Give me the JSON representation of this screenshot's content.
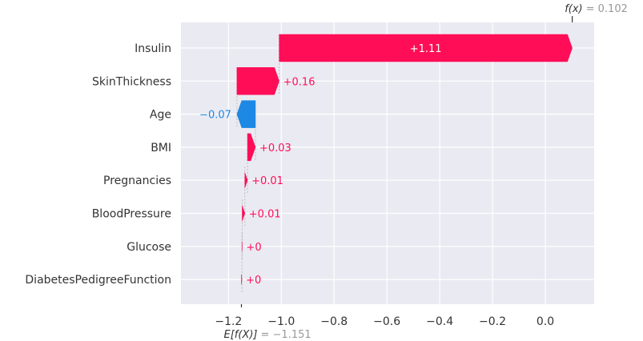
{
  "chart_data": {
    "type": "waterfall",
    "base_value_label": "E[f(X)]",
    "base_value_text": "= −1.151",
    "base_value": -1.151,
    "output_label": "f(x)",
    "output_value_text": "= 0.102",
    "output_value": 0.102,
    "xlim": [
      -1.38,
      0.185
    ],
    "xticks": [
      -1.2,
      -1.0,
      -0.8,
      -0.6,
      -0.4,
      -0.2,
      0.0
    ],
    "xtick_labels": [
      "−1.2",
      "−1.0",
      "−0.8",
      "−0.6",
      "−0.4",
      "−0.2",
      "0.0"
    ],
    "features": [
      {
        "name": "Insulin",
        "start": -1.008,
        "end": 0.102,
        "value": 1.11,
        "label": "+1.11"
      },
      {
        "name": "SkinThickness",
        "start": -1.168,
        "end": -1.008,
        "value": 0.16,
        "label": "+0.16"
      },
      {
        "name": "Age",
        "start": -1.098,
        "end": -1.168,
        "value": -0.07,
        "label": "−0.07"
      },
      {
        "name": "BMI",
        "start": -1.128,
        "end": -1.098,
        "value": 0.03,
        "label": "+0.03"
      },
      {
        "name": "Pregnancies",
        "start": -1.138,
        "end": -1.128,
        "value": 0.01,
        "label": "+0.01"
      },
      {
        "name": "BloodPressure",
        "start": -1.148,
        "end": -1.138,
        "value": 0.01,
        "label": "+0.01"
      },
      {
        "name": "Glucose",
        "start": -1.149,
        "end": -1.148,
        "value": 0.0,
        "label": "+0"
      },
      {
        "name": "DiabetesPedigreeFunction",
        "start": -1.151,
        "end": -1.149,
        "value": 0.0,
        "label": "+0"
      }
    ],
    "colors": {
      "positive": "#ff0d57",
      "negative": "#1e88e5",
      "plot_bg": "#eaeaf2",
      "grid": "#ffffff"
    }
  }
}
